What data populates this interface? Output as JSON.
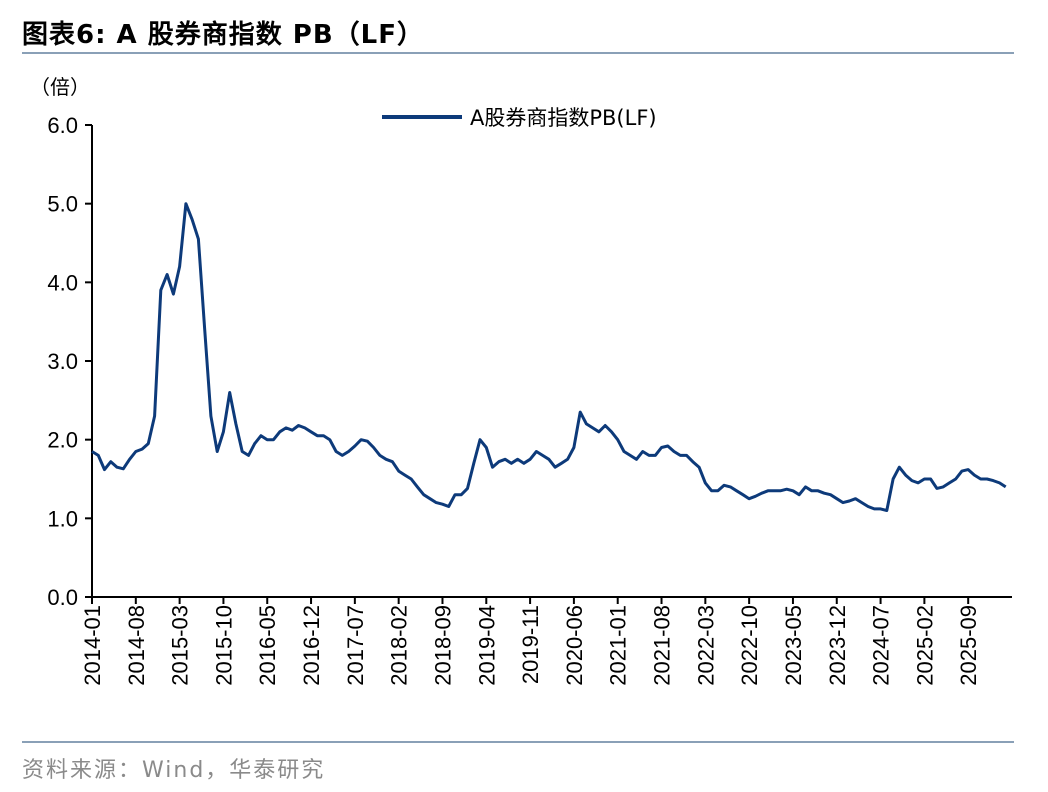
{
  "header": {
    "title": "图表6:   A 股券商指数 PB（LF）"
  },
  "footer": {
    "source": "资料来源：Wind，华泰研究"
  },
  "colors": {
    "series": "#0d3a7a",
    "rule": "#8aa0b7",
    "source_text": "#8a8a8a"
  },
  "chart_data": {
    "type": "line",
    "title": "A 股券商指数 PB（LF）",
    "unit_label": "（倍）",
    "legend_position": "top-center",
    "grid": false,
    "ylim": [
      0,
      6
    ],
    "yticks": [
      "0.0",
      "1.0",
      "2.0",
      "3.0",
      "4.0",
      "5.0",
      "6.0"
    ],
    "xlim": [
      "2014-01",
      "2026-04"
    ],
    "xticks": [
      "2014-01",
      "2014-08",
      "2015-03",
      "2015-10",
      "2016-05",
      "2016-12",
      "2017-07",
      "2018-02",
      "2018-09",
      "2019-04",
      "2019-11",
      "2020-06",
      "2021-01",
      "2021-08",
      "2022-03",
      "2022-10",
      "2023-05",
      "2023-12",
      "2024-07",
      "2025-02",
      "2025-09"
    ],
    "series": [
      {
        "name": "A股券商指数PB(LF)",
        "points": [
          [
            "2014-01",
            1.85
          ],
          [
            "2014-02",
            1.8
          ],
          [
            "2014-03",
            1.62
          ],
          [
            "2014-04",
            1.72
          ],
          [
            "2014-05",
            1.65
          ],
          [
            "2014-06",
            1.63
          ],
          [
            "2014-07",
            1.75
          ],
          [
            "2014-08",
            1.85
          ],
          [
            "2014-09",
            1.88
          ],
          [
            "2014-10",
            1.95
          ],
          [
            "2014-11",
            2.3
          ],
          [
            "2014-12",
            3.9
          ],
          [
            "2015-01",
            4.1
          ],
          [
            "2015-02",
            3.85
          ],
          [
            "2015-03",
            4.2
          ],
          [
            "2015-04",
            5.0
          ],
          [
            "2015-05",
            4.8
          ],
          [
            "2015-06",
            4.55
          ],
          [
            "2015-07",
            3.4
          ],
          [
            "2015-08",
            2.3
          ],
          [
            "2015-09",
            1.85
          ],
          [
            "2015-10",
            2.1
          ],
          [
            "2015-11",
            2.6
          ],
          [
            "2015-12",
            2.2
          ],
          [
            "2016-01",
            1.85
          ],
          [
            "2016-02",
            1.8
          ],
          [
            "2016-03",
            1.95
          ],
          [
            "2016-04",
            2.05
          ],
          [
            "2016-05",
            2.0
          ],
          [
            "2016-06",
            2.0
          ],
          [
            "2016-07",
            2.1
          ],
          [
            "2016-08",
            2.15
          ],
          [
            "2016-09",
            2.12
          ],
          [
            "2016-10",
            2.18
          ],
          [
            "2016-11",
            2.15
          ],
          [
            "2016-12",
            2.1
          ],
          [
            "2017-01",
            2.05
          ],
          [
            "2017-02",
            2.05
          ],
          [
            "2017-03",
            2.0
          ],
          [
            "2017-04",
            1.85
          ],
          [
            "2017-05",
            1.8
          ],
          [
            "2017-06",
            1.85
          ],
          [
            "2017-07",
            1.92
          ],
          [
            "2017-08",
            2.0
          ],
          [
            "2017-09",
            1.98
          ],
          [
            "2017-10",
            1.9
          ],
          [
            "2017-11",
            1.8
          ],
          [
            "2017-12",
            1.75
          ],
          [
            "2018-01",
            1.72
          ],
          [
            "2018-02",
            1.6
          ],
          [
            "2018-03",
            1.55
          ],
          [
            "2018-04",
            1.5
          ],
          [
            "2018-05",
            1.4
          ],
          [
            "2018-06",
            1.3
          ],
          [
            "2018-07",
            1.25
          ],
          [
            "2018-08",
            1.2
          ],
          [
            "2018-09",
            1.18
          ],
          [
            "2018-10",
            1.15
          ],
          [
            "2018-11",
            1.3
          ],
          [
            "2018-12",
            1.3
          ],
          [
            "2019-01",
            1.38
          ],
          [
            "2019-02",
            1.7
          ],
          [
            "2019-03",
            2.0
          ],
          [
            "2019-04",
            1.9
          ],
          [
            "2019-05",
            1.65
          ],
          [
            "2019-06",
            1.72
          ],
          [
            "2019-07",
            1.75
          ],
          [
            "2019-08",
            1.7
          ],
          [
            "2019-09",
            1.75
          ],
          [
            "2019-10",
            1.7
          ],
          [
            "2019-11",
            1.75
          ],
          [
            "2019-12",
            1.85
          ],
          [
            "2020-01",
            1.8
          ],
          [
            "2020-02",
            1.75
          ],
          [
            "2020-03",
            1.65
          ],
          [
            "2020-04",
            1.7
          ],
          [
            "2020-05",
            1.75
          ],
          [
            "2020-06",
            1.9
          ],
          [
            "2020-07",
            2.35
          ],
          [
            "2020-08",
            2.2
          ],
          [
            "2020-09",
            2.15
          ],
          [
            "2020-10",
            2.1
          ],
          [
            "2020-11",
            2.18
          ],
          [
            "2020-12",
            2.1
          ],
          [
            "2021-01",
            2.0
          ],
          [
            "2021-02",
            1.85
          ],
          [
            "2021-03",
            1.8
          ],
          [
            "2021-04",
            1.75
          ],
          [
            "2021-05",
            1.85
          ],
          [
            "2021-06",
            1.8
          ],
          [
            "2021-07",
            1.8
          ],
          [
            "2021-08",
            1.9
          ],
          [
            "2021-09",
            1.92
          ],
          [
            "2021-10",
            1.85
          ],
          [
            "2021-11",
            1.8
          ],
          [
            "2021-12",
            1.8
          ],
          [
            "2022-01",
            1.72
          ],
          [
            "2022-02",
            1.65
          ],
          [
            "2022-03",
            1.45
          ],
          [
            "2022-04",
            1.35
          ],
          [
            "2022-05",
            1.35
          ],
          [
            "2022-06",
            1.42
          ],
          [
            "2022-07",
            1.4
          ],
          [
            "2022-08",
            1.35
          ],
          [
            "2022-09",
            1.3
          ],
          [
            "2022-10",
            1.25
          ],
          [
            "2022-11",
            1.28
          ],
          [
            "2022-12",
            1.32
          ],
          [
            "2023-01",
            1.35
          ],
          [
            "2023-02",
            1.35
          ],
          [
            "2023-03",
            1.35
          ],
          [
            "2023-04",
            1.37
          ],
          [
            "2023-05",
            1.35
          ],
          [
            "2023-06",
            1.3
          ],
          [
            "2023-07",
            1.4
          ],
          [
            "2023-08",
            1.35
          ],
          [
            "2023-09",
            1.35
          ],
          [
            "2023-10",
            1.32
          ],
          [
            "2023-11",
            1.3
          ],
          [
            "2023-12",
            1.25
          ],
          [
            "2024-01",
            1.2
          ],
          [
            "2024-02",
            1.22
          ],
          [
            "2024-03",
            1.25
          ],
          [
            "2024-04",
            1.2
          ],
          [
            "2024-05",
            1.15
          ],
          [
            "2024-06",
            1.12
          ],
          [
            "2024-07",
            1.12
          ],
          [
            "2024-08",
            1.1
          ],
          [
            "2024-09",
            1.5
          ],
          [
            "2024-10",
            1.65
          ],
          [
            "2024-11",
            1.55
          ],
          [
            "2024-12",
            1.48
          ],
          [
            "2025-01",
            1.45
          ],
          [
            "2025-02",
            1.5
          ],
          [
            "2025-03",
            1.5
          ],
          [
            "2025-04",
            1.38
          ],
          [
            "2025-05",
            1.4
          ],
          [
            "2025-06",
            1.45
          ],
          [
            "2025-07",
            1.5
          ],
          [
            "2025-08",
            1.6
          ],
          [
            "2025-09",
            1.62
          ],
          [
            "2025-10",
            1.55
          ],
          [
            "2025-11",
            1.5
          ],
          [
            "2025-12",
            1.5
          ],
          [
            "2026-01",
            1.48
          ],
          [
            "2026-02",
            1.45
          ],
          [
            "2026-03",
            1.4
          ]
        ]
      }
    ]
  }
}
